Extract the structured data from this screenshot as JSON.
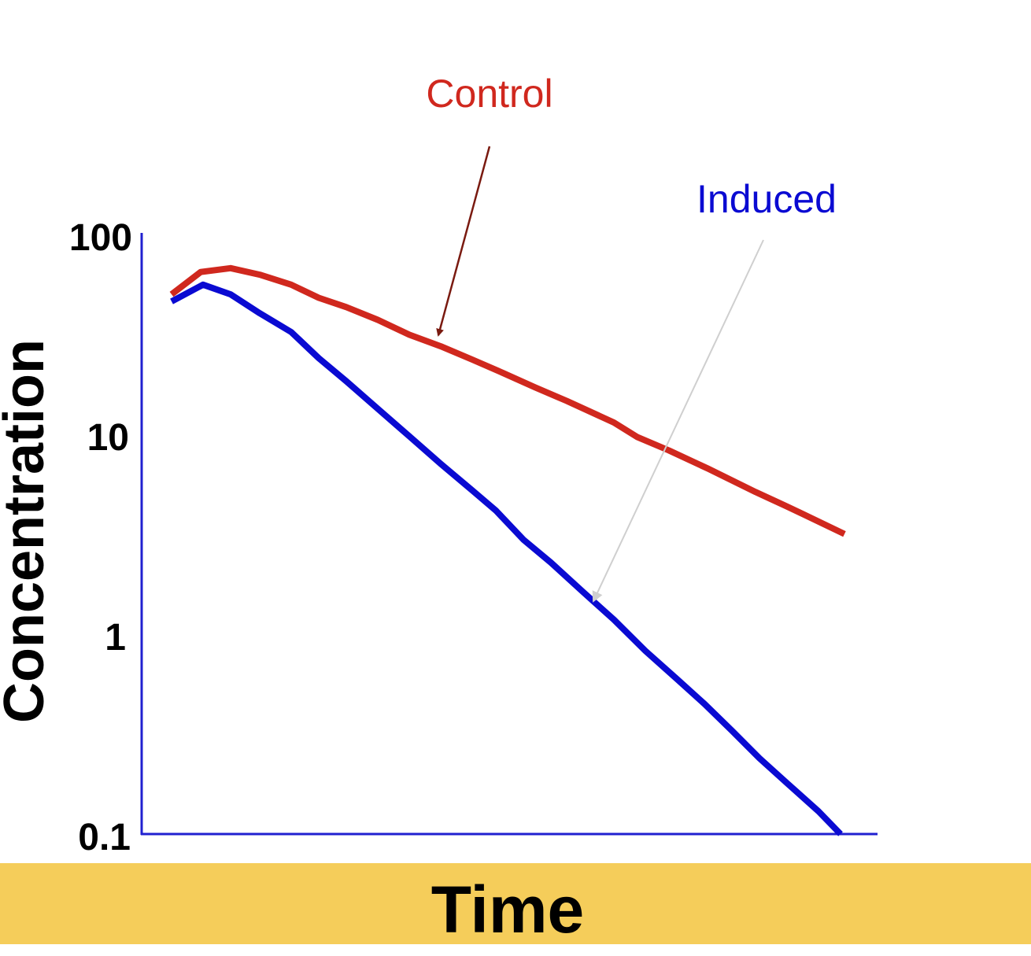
{
  "chart_data": {
    "type": "line",
    "title": "",
    "xlabel": "Time",
    "ylabel": "Concentration",
    "yscale": "log",
    "ylim": [
      0.1,
      100
    ],
    "xlim": [
      0,
      93.5
    ],
    "yticks": [
      "100",
      "10",
      "1",
      "0.1"
    ],
    "ytick_values": [
      100,
      10,
      1,
      0.1
    ],
    "grid": false,
    "axis_color": "#2020d0",
    "band_color": "#f5cd5a",
    "series": [
      {
        "name": "Control",
        "color": "#d0281e",
        "x": [
          3.8,
          7.5,
          11.3,
          15,
          19,
          22.5,
          26,
          30,
          34,
          38,
          42,
          46,
          50,
          54,
          60,
          63,
          67,
          72,
          78,
          82,
          89.3
        ],
        "y": [
          51,
          66,
          69,
          64,
          57,
          49,
          44,
          38,
          32,
          28,
          24,
          20.5,
          17.4,
          14.9,
          11.6,
          9.8,
          8.4,
          6.8,
          5.2,
          4.4,
          3.2
        ]
      },
      {
        "name": "Induced",
        "color": "#0a0ad2",
        "x": [
          3.8,
          7.8,
          11.3,
          15,
          19,
          22.5,
          26,
          30,
          34,
          38,
          42,
          45,
          48.5,
          52,
          56,
          60,
          64,
          68,
          71.5,
          75,
          78.5,
          82,
          86,
          88.8
        ],
        "y": [
          47,
          57,
          51,
          41,
          33,
          24.4,
          18.7,
          13.6,
          9.9,
          7.2,
          5.3,
          4.2,
          3.0,
          2.3,
          1.65,
          1.19,
          0.83,
          0.6,
          0.45,
          0.33,
          0.24,
          0.18,
          0.13,
          0.1
        ]
      }
    ],
    "annotations": [
      {
        "text": "Control",
        "color": "#d0281e",
        "arrow_color": "#7a1a10"
      },
      {
        "text": "Induced",
        "color": "#0a0ad2",
        "arrow_color": "#cfcfcf"
      }
    ]
  }
}
